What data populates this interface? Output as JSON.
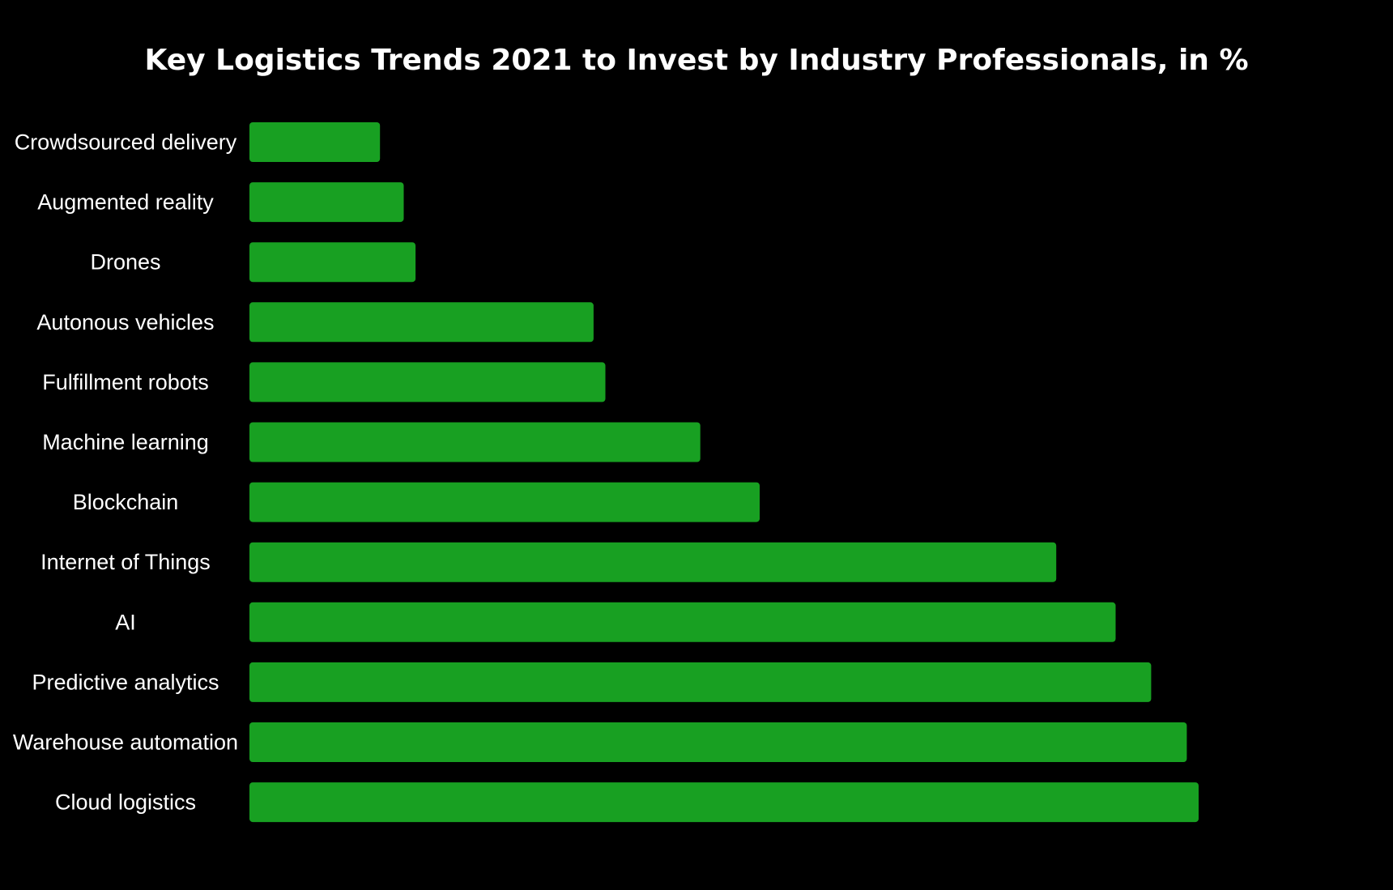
{
  "chart_data": {
    "type": "bar",
    "orientation": "horizontal",
    "title": "Key Logistics Trends 2021 to Invest by Industry Professionals, in %",
    "categories": [
      "Crowdsourced delivery",
      "Augmented reality",
      "Drones",
      "Autonous vehicles",
      "Fulfillment robots",
      "Machine learning",
      "Blockchain",
      "Internet of Things",
      "AI",
      "Predictive analytics",
      "Warehouse automation",
      "Cloud logistics"
    ],
    "values": [
      11,
      13,
      14,
      29,
      30,
      38,
      43,
      68,
      73,
      76,
      79,
      80
    ],
    "xlim": [
      0,
      100
    ],
    "grid": false,
    "legend": "none",
    "bar_color": "#18a022",
    "background": "#000000",
    "text_color": "#ffffff"
  }
}
